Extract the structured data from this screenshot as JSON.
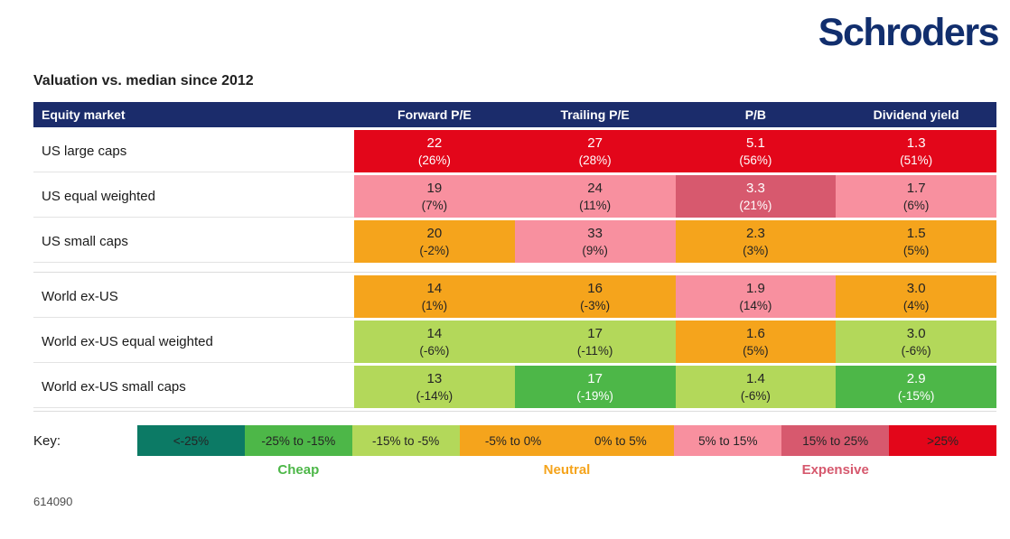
{
  "brand": {
    "logo": "Schroders",
    "logo_color": "#112E6D"
  },
  "footnote": "614090",
  "chart_data": {
    "type": "heatmap",
    "title": "Valuation vs. median since 2012",
    "columns": [
      "Equity market",
      "Forward P/E",
      "Trailing P/E",
      "P/B",
      "Dividend yield"
    ],
    "rows": [
      {
        "label": "US large caps",
        "cells": [
          {
            "value": "22",
            "pct": "(26%)",
            "level": "gt25"
          },
          {
            "value": "27",
            "pct": "(28%)",
            "level": "gt25"
          },
          {
            "value": "5.1",
            "pct": "(56%)",
            "level": "gt25"
          },
          {
            "value": "1.3",
            "pct": "(51%)",
            "level": "gt25"
          }
        ]
      },
      {
        "label": "US equal weighted",
        "cells": [
          {
            "value": "19",
            "pct": "(7%)",
            "level": "p5-15"
          },
          {
            "value": "24",
            "pct": "(11%)",
            "level": "p5-15"
          },
          {
            "value": "3.3",
            "pct": "(21%)",
            "level": "p15-25"
          },
          {
            "value": "1.7",
            "pct": "(6%)",
            "level": "p5-15"
          }
        ]
      },
      {
        "label": "US small caps",
        "cells": [
          {
            "value": "20",
            "pct": "(-2%)",
            "level": "n5-0"
          },
          {
            "value": "33",
            "pct": "(9%)",
            "level": "p5-15"
          },
          {
            "value": "2.3",
            "pct": "(3%)",
            "level": "p0-5"
          },
          {
            "value": "1.5",
            "pct": "(5%)",
            "level": "p0-5"
          }
        ]
      },
      {
        "label": "World ex-US",
        "cells": [
          {
            "value": "14",
            "pct": "(1%)",
            "level": "p0-5"
          },
          {
            "value": "16",
            "pct": "(-3%)",
            "level": "n5-0"
          },
          {
            "value": "1.9",
            "pct": "(14%)",
            "level": "p5-15"
          },
          {
            "value": "3.0",
            "pct": "(4%)",
            "level": "p0-5"
          }
        ]
      },
      {
        "label": "World ex-US equal weighted",
        "cells": [
          {
            "value": "14",
            "pct": "(-6%)",
            "level": "n15-5"
          },
          {
            "value": "17",
            "pct": "(-11%)",
            "level": "n15-5"
          },
          {
            "value": "1.6",
            "pct": "(5%)",
            "level": "p0-5"
          },
          {
            "value": "3.0",
            "pct": "(-6%)",
            "level": "n15-5"
          }
        ]
      },
      {
        "label": "World ex-US small caps",
        "cells": [
          {
            "value": "13",
            "pct": "(-14%)",
            "level": "n15-5"
          },
          {
            "value": "17",
            "pct": "(-19%)",
            "level": "n25-15"
          },
          {
            "value": "1.4",
            "pct": "(-6%)",
            "level": "n15-5"
          },
          {
            "value": "2.9",
            "pct": "(-15%)",
            "level": "n25-15"
          }
        ]
      }
    ],
    "legend": {
      "label": "Key:",
      "bins": [
        {
          "label": "<-25%",
          "level": "lt-25"
        },
        {
          "label": "-25% to -15%",
          "level": "n25-15"
        },
        {
          "label": "-15% to -5%",
          "level": "n15-5"
        },
        {
          "label": "-5% to 0%",
          "level": "n5-0"
        },
        {
          "label": "0% to 5%",
          "level": "p0-5"
        },
        {
          "label": "5% to 15%",
          "level": "p5-15"
        },
        {
          "label": "15% to 25%",
          "level": "p15-25"
        },
        {
          "label": ">25%",
          "level": "gt25"
        }
      ],
      "categories": [
        {
          "label": "Cheap",
          "key": "cheap",
          "color": "#4DB748"
        },
        {
          "label": "Neutral",
          "key": "neutral",
          "color": "#F5A41C"
        },
        {
          "label": "Expensive",
          "key": "expensive",
          "color": "#D6596E"
        }
      ]
    },
    "palette": {
      "lt-25": "#0C7A65",
      "n25-15": "#4DB748",
      "n15-5": "#B3D85A",
      "n5-0": "#F5A41C",
      "p0-5": "#F5A41C",
      "p5-15": "#F8909F",
      "p15-25": "#D7596E",
      "gt25": "#E3061A",
      "header_navy": "#1B2C6B"
    }
  }
}
